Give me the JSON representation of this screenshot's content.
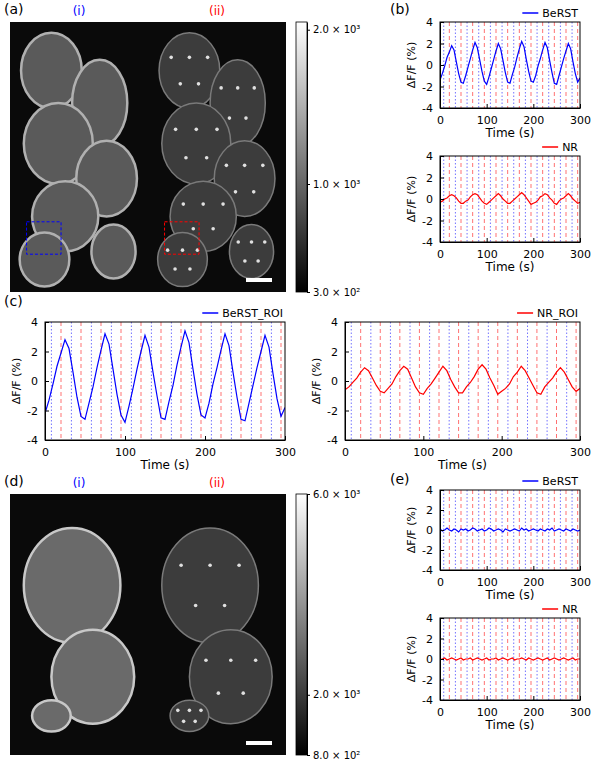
{
  "chart_data": [
    {
      "type": "image",
      "panel": "(a)",
      "subpanels": [
        {
          "label": "(i)",
          "color": "#0000ff"
        },
        {
          "label": "(ii)",
          "color": "#ff0000"
        }
      ],
      "colorbar": {
        "range": [
          300,
          2050
        ],
        "ticks": [
          {
            "value": 300,
            "label": "3.0 × 10²"
          },
          {
            "value": 1000,
            "label": "1.0 × 10³"
          },
          {
            "value": 2000,
            "label": "2.0 × 10³"
          }
        ]
      }
    },
    {
      "type": "line",
      "panel": "(b)",
      "x_label": "Time (s)",
      "y_label": "ΔF/F (%)",
      "xlim": [
        0,
        300
      ],
      "ylim": [
        -4,
        4
      ],
      "xticks": [
        0,
        100,
        200,
        300
      ],
      "yticks": [
        -4,
        -2,
        0,
        2,
        4
      ],
      "legend": "above",
      "x": [
        0,
        5,
        10,
        15,
        20,
        25,
        30,
        35,
        40,
        45,
        50,
        55,
        60,
        65,
        70,
        75,
        80,
        85,
        90,
        95,
        100,
        105,
        110,
        115,
        120,
        125,
        130,
        135,
        140,
        145,
        150,
        155,
        160,
        165,
        170,
        175,
        180,
        185,
        190,
        195,
        200,
        205,
        210,
        215,
        220,
        225,
        230,
        235,
        240,
        245,
        250,
        255,
        260,
        265,
        270,
        275,
        280,
        285,
        290,
        295,
        300
      ],
      "series": [
        {
          "name": "BeRST",
          "color": "#0000ff",
          "values": [
            -1.4,
            -0.8,
            -0.1,
            0.7,
            1.2,
            1.8,
            1.4,
            0.3,
            -0.8,
            -1.6,
            -1.7,
            -1.0,
            -0.2,
            0.6,
            1.4,
            2.1,
            1.6,
            0.5,
            -0.6,
            -1.5,
            -1.8,
            -1.1,
            -0.3,
            0.5,
            1.3,
            2.0,
            1.5,
            0.4,
            -0.7,
            -1.6,
            -1.7,
            -0.9,
            -0.2,
            0.7,
            1.5,
            2.2,
            1.7,
            0.5,
            -0.6,
            -1.5,
            -1.6,
            -1.0,
            -0.1,
            0.6,
            1.4,
            2.1,
            1.6,
            0.4,
            -0.7,
            -1.7,
            -1.8,
            -1.0,
            -0.2,
            0.6,
            1.3,
            2.0,
            1.5,
            0.3,
            -0.8,
            -1.6,
            -1.2
          ]
        }
      ],
      "events": [
        {
          "color": "#0000ff",
          "line_style": "dotted",
          "x": [
            8,
            33,
            58,
            83,
            108,
            133,
            158,
            183,
            208,
            233,
            258,
            283
          ]
        },
        {
          "color": "#ff0000",
          "line_style": "dashed",
          "x": [
            20,
            45,
            70,
            95,
            120,
            145,
            170,
            195,
            220,
            245,
            270,
            295
          ]
        }
      ]
    },
    {
      "type": "line",
      "x_label": "Time (s)",
      "y_label": "ΔF/F (%)",
      "xlim": [
        0,
        300
      ],
      "ylim": [
        -4,
        4
      ],
      "xticks": [
        0,
        100,
        200,
        300
      ],
      "yticks": [
        -4,
        -2,
        0,
        2,
        4
      ],
      "legend": "above",
      "x": [
        0,
        5,
        10,
        15,
        20,
        25,
        30,
        35,
        40,
        45,
        50,
        55,
        60,
        65,
        70,
        75,
        80,
        85,
        90,
        95,
        100,
        105,
        110,
        115,
        120,
        125,
        130,
        135,
        140,
        145,
        150,
        155,
        160,
        165,
        170,
        175,
        180,
        185,
        190,
        195,
        200,
        205,
        210,
        215,
        220,
        225,
        230,
        235,
        240,
        245,
        250,
        255,
        260,
        265,
        270,
        275,
        280,
        285,
        290,
        295,
        300
      ],
      "series": [
        {
          "name": "NR",
          "color": "#ff0000",
          "values": [
            -0.3,
            -0.2,
            0.0,
            0.1,
            0.3,
            0.4,
            0.3,
            0.1,
            -0.2,
            -0.4,
            -0.4,
            -0.2,
            -0.1,
            0.2,
            0.4,
            0.5,
            0.4,
            0.1,
            -0.2,
            -0.4,
            -0.5,
            -0.3,
            -0.1,
            0.1,
            0.3,
            0.5,
            0.3,
            0.0,
            -0.2,
            -0.4,
            -0.4,
            -0.2,
            0.0,
            0.2,
            0.4,
            0.6,
            0.4,
            0.1,
            -0.2,
            -0.5,
            -0.4,
            -0.3,
            -0.1,
            0.2,
            0.3,
            0.5,
            0.4,
            0.1,
            -0.1,
            -0.4,
            -0.5,
            -0.2,
            0.0,
            0.1,
            0.3,
            0.5,
            0.3,
            0.0,
            -0.2,
            -0.4,
            -0.3
          ]
        }
      ],
      "events": [
        {
          "color": "#0000ff",
          "line_style": "dotted",
          "x": [
            8,
            33,
            58,
            83,
            108,
            133,
            158,
            183,
            208,
            233,
            258,
            283
          ]
        },
        {
          "color": "#ff0000",
          "line_style": "dashed",
          "x": [
            20,
            45,
            70,
            95,
            120,
            145,
            170,
            195,
            220,
            245,
            270,
            295
          ]
        }
      ]
    },
    {
      "type": "line",
      "panel": "(c)",
      "x_label": "Time (s)",
      "y_label": "ΔF/F (%)",
      "xlim": [
        0,
        300
      ],
      "ylim": [
        -4,
        4
      ],
      "xticks": [
        0,
        100,
        200,
        300
      ],
      "yticks": [
        -4,
        -2,
        0,
        2,
        4
      ],
      "legend": "above",
      "x": [
        0,
        5,
        10,
        15,
        20,
        25,
        30,
        35,
        40,
        45,
        50,
        55,
        60,
        65,
        70,
        75,
        80,
        85,
        90,
        95,
        100,
        105,
        110,
        115,
        120,
        125,
        130,
        135,
        140,
        145,
        150,
        155,
        160,
        165,
        170,
        175,
        180,
        185,
        190,
        195,
        200,
        205,
        210,
        215,
        220,
        225,
        230,
        235,
        240,
        245,
        250,
        255,
        260,
        265,
        270,
        275,
        280,
        285,
        290,
        295,
        300
      ],
      "series": [
        {
          "name": "BeRST_ROI",
          "color": "#0000ff",
          "values": [
            -2.2,
            -1.3,
            -0.2,
            1.0,
            1.9,
            2.8,
            2.2,
            0.6,
            -1.1,
            -2.4,
            -2.6,
            -1.5,
            -0.4,
            0.9,
            2.1,
            3.2,
            2.5,
            0.8,
            -0.9,
            -2.3,
            -2.8,
            -1.7,
            -0.5,
            0.8,
            2.0,
            3.1,
            2.3,
            0.6,
            -1.0,
            -2.5,
            -2.6,
            -1.4,
            -0.3,
            1.1,
            2.3,
            3.4,
            2.6,
            0.8,
            -0.9,
            -2.3,
            -2.5,
            -1.5,
            -0.2,
            0.9,
            2.1,
            3.2,
            2.4,
            0.6,
            -1.1,
            -2.6,
            -2.7,
            -1.5,
            -0.3,
            0.9,
            2.0,
            3.1,
            2.3,
            0.5,
            -1.2,
            -2.4,
            -1.8
          ]
        }
      ],
      "events": [
        {
          "color": "#0000ff",
          "line_style": "dotted",
          "x": [
            8,
            33,
            58,
            83,
            108,
            133,
            158,
            183,
            208,
            233,
            258,
            283
          ]
        },
        {
          "color": "#ff0000",
          "line_style": "dashed",
          "x": [
            20,
            45,
            70,
            95,
            120,
            145,
            170,
            195,
            220,
            245,
            270,
            295
          ]
        }
      ]
    },
    {
      "type": "line",
      "x_label": "Time (s)",
      "y_label": "ΔF/F (%)",
      "xlim": [
        0,
        300
      ],
      "ylim": [
        -4,
        4
      ],
      "xticks": [
        0,
        100,
        200,
        300
      ],
      "yticks": [
        -4,
        -2,
        0,
        2,
        4
      ],
      "legend": "above",
      "x": [
        0,
        5,
        10,
        15,
        20,
        25,
        30,
        35,
        40,
        45,
        50,
        55,
        60,
        65,
        70,
        75,
        80,
        85,
        90,
        95,
        100,
        105,
        110,
        115,
        120,
        125,
        130,
        135,
        140,
        145,
        150,
        155,
        160,
        165,
        170,
        175,
        180,
        185,
        190,
        195,
        200,
        205,
        210,
        215,
        220,
        225,
        230,
        235,
        240,
        245,
        250,
        255,
        260,
        265,
        270,
        275,
        280,
        285,
        290,
        295,
        300
      ],
      "series": [
        {
          "name": "NR_ROI",
          "color": "#ff0000",
          "values": [
            -0.6,
            -0.4,
            -0.1,
            0.2,
            0.6,
            0.9,
            0.7,
            0.2,
            -0.3,
            -0.7,
            -0.8,
            -0.5,
            -0.2,
            0.3,
            0.7,
            1.0,
            0.8,
            0.2,
            -0.4,
            -0.8,
            -0.9,
            -0.5,
            -0.2,
            0.2,
            0.6,
            1.0,
            0.7,
            0.1,
            -0.4,
            -0.8,
            -0.8,
            -0.4,
            -0.1,
            0.3,
            0.8,
            1.1,
            0.8,
            0.2,
            -0.3,
            -0.9,
            -0.7,
            -0.5,
            -0.2,
            0.3,
            0.6,
            1.0,
            0.7,
            0.2,
            -0.3,
            -0.8,
            -0.9,
            -0.4,
            -0.1,
            0.2,
            0.6,
            0.9,
            0.6,
            0.1,
            -0.4,
            -0.7,
            -0.5
          ]
        }
      ],
      "events": [
        {
          "color": "#0000ff",
          "line_style": "dotted",
          "x": [
            8,
            33,
            58,
            83,
            108,
            133,
            158,
            183,
            208,
            233,
            258,
            283
          ]
        },
        {
          "color": "#ff0000",
          "line_style": "dashed",
          "x": [
            20,
            45,
            70,
            95,
            120,
            145,
            170,
            195,
            220,
            245,
            270,
            295
          ]
        }
      ]
    },
    {
      "type": "image",
      "panel": "(d)",
      "subpanels": [
        {
          "label": "(i)",
          "color": "#0000ff"
        },
        {
          "label": "(ii)",
          "color": "#ff0000"
        }
      ],
      "colorbar": {
        "range": [
          800,
          6000
        ],
        "ticks": [
          {
            "value": 800,
            "label": "8.0 × 10²"
          },
          {
            "value": 2000,
            "label": "2.0 × 10³"
          },
          {
            "value": 6000,
            "label": "6.0 × 10³"
          }
        ]
      }
    },
    {
      "type": "line",
      "panel": "(e)",
      "x_label": "Time (s)",
      "y_label": "ΔF/F (%)",
      "xlim": [
        0,
        300
      ],
      "ylim": [
        -4,
        4
      ],
      "xticks": [
        0,
        100,
        200,
        300
      ],
      "yticks": [
        -4,
        -2,
        0,
        2,
        4
      ],
      "legend": "above",
      "x": [
        0,
        5,
        10,
        15,
        20,
        25,
        30,
        35,
        40,
        45,
        50,
        55,
        60,
        65,
        70,
        75,
        80,
        85,
        90,
        95,
        100,
        105,
        110,
        115,
        120,
        125,
        130,
        135,
        140,
        145,
        150,
        155,
        160,
        165,
        170,
        175,
        180,
        185,
        190,
        195,
        200,
        205,
        210,
        215,
        220,
        225,
        230,
        235,
        240,
        245,
        250,
        255,
        260,
        265,
        270,
        275,
        280,
        285,
        290,
        295,
        300
      ],
      "series": [
        {
          "name": "BeRST",
          "color": "#0000ff",
          "values": [
            0.1,
            -0.1,
            0.0,
            0.2,
            0.0,
            -0.1,
            0.1,
            0.0,
            -0.2,
            0.1,
            0.0,
            0.1,
            -0.1,
            0.0,
            0.2,
            0.1,
            -0.1,
            0.0,
            0.1,
            -0.1,
            0.0,
            0.2,
            0.1,
            -0.1,
            0.0,
            0.1,
            0.0,
            -0.2,
            0.1,
            0.0,
            -0.1,
            0.0,
            0.1,
            0.0,
            -0.1,
            0.2,
            0.0,
            0.1,
            -0.1,
            0.0,
            0.1,
            0.0,
            -0.1,
            0.1,
            0.0,
            -0.1,
            0.1,
            0.0,
            0.2,
            -0.1,
            0.0,
            0.1,
            0.0,
            -0.1,
            0.1,
            0.0,
            -0.1,
            0.1,
            0.0,
            -0.1,
            0.0
          ]
        }
      ],
      "events": [
        {
          "color": "#0000ff",
          "line_style": "dotted",
          "x": [
            8,
            33,
            58,
            83,
            108,
            133,
            158,
            183,
            208,
            233,
            258,
            283
          ]
        },
        {
          "color": "#ff0000",
          "line_style": "dashed",
          "x": [
            20,
            45,
            70,
            95,
            120,
            145,
            170,
            195,
            220,
            245,
            270,
            295
          ]
        }
      ]
    },
    {
      "type": "line",
      "x_label": "Time (s)",
      "y_label": "ΔF/F (%)",
      "xlim": [
        0,
        300
      ],
      "ylim": [
        -4,
        4
      ],
      "xticks": [
        0,
        100,
        200,
        300
      ],
      "yticks": [
        -4,
        -2,
        0,
        2,
        4
      ],
      "legend": "above",
      "x": [
        0,
        5,
        10,
        15,
        20,
        25,
        30,
        35,
        40,
        45,
        50,
        55,
        60,
        65,
        70,
        75,
        80,
        85,
        90,
        95,
        100,
        105,
        110,
        115,
        120,
        125,
        130,
        135,
        140,
        145,
        150,
        155,
        160,
        165,
        170,
        175,
        180,
        185,
        190,
        195,
        200,
        205,
        210,
        215,
        220,
        225,
        230,
        235,
        240,
        245,
        250,
        255,
        260,
        265,
        270,
        275,
        280,
        285,
        290,
        295,
        300
      ],
      "series": [
        {
          "name": "NR",
          "color": "#ff0000",
          "values": [
            -0.1,
            0.0,
            0.1,
            -0.1,
            0.0,
            0.1,
            0.0,
            -0.1,
            0.0,
            0.1,
            -0.1,
            0.0,
            0.0,
            0.1,
            -0.1,
            0.0,
            0.1,
            0.0,
            -0.1,
            0.0,
            0.1,
            -0.1,
            0.0,
            0.0,
            0.1,
            -0.1,
            0.0,
            0.1,
            0.0,
            -0.1,
            0.0,
            0.1,
            -0.1,
            0.0,
            0.0,
            0.1,
            0.0,
            -0.1,
            0.1,
            0.0,
            -0.1,
            0.0,
            0.1,
            0.0,
            -0.1,
            0.0,
            0.1,
            -0.1,
            0.0,
            0.1,
            0.0,
            -0.1,
            0.0,
            0.1,
            0.0,
            -0.1,
            0.0,
            0.1,
            -0.1,
            0.0,
            0.0
          ]
        }
      ],
      "events": [
        {
          "color": "#0000ff",
          "line_style": "dotted",
          "x": [
            8,
            33,
            58,
            83,
            108,
            133,
            158,
            183,
            208,
            233,
            258,
            283
          ]
        },
        {
          "color": "#ff0000",
          "line_style": "dashed",
          "x": [
            20,
            45,
            70,
            95,
            120,
            145,
            170,
            195,
            220,
            245,
            270,
            295
          ]
        }
      ]
    }
  ]
}
